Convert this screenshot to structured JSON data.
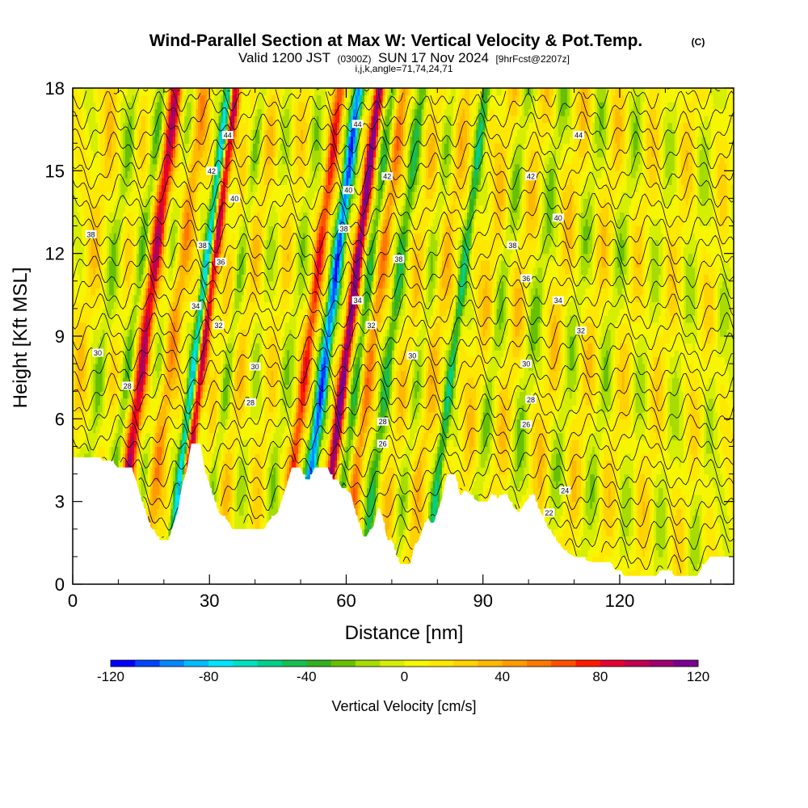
{
  "chart_data": {
    "type": "heatmap",
    "title": "Wind-Parallel Section at Max W: Vertical Velocity & Pot.Temp.",
    "title_mark": "(C)",
    "subtitle_prefix": "Valid 1200 JST",
    "subtitle_zulu": "(0300Z)",
    "subtitle_date": "SUN 17 Nov 2024",
    "subtitle_fcst": "[9hrFcst@2207z]",
    "subtitle2": "i,j,k,angle=71,74,24,71",
    "xlabel": "Distance [nm]",
    "ylabel": "Height [Kft MSL]",
    "xlim": [
      0,
      145
    ],
    "ylim": [
      0,
      18
    ],
    "x_ticks": [
      0,
      30,
      60,
      90,
      120
    ],
    "y_ticks": [
      0,
      3,
      6,
      9,
      12,
      15,
      18
    ],
    "x_tick_labels": [
      "0",
      "30",
      "60",
      "90",
      "120"
    ],
    "y_tick_labels": [
      "0",
      "3",
      "6",
      "9",
      "12",
      "15",
      "18"
    ],
    "colorbar": {
      "label": "Vertical Velocity [cm/s]",
      "min": -120,
      "max": 120,
      "step": 10,
      "tick_values": [
        -120,
        -80,
        -40,
        0,
        40,
        80,
        120
      ],
      "tick_labels": [
        "-120",
        "-80",
        "-40",
        "0",
        "40",
        "80",
        "120"
      ],
      "colors": [
        "#0000ff",
        "#0044ff",
        "#0088ff",
        "#00bbff",
        "#00e5ff",
        "#00e0c0",
        "#00d08a",
        "#16c050",
        "#33b020",
        "#66c000",
        "#a6dc00",
        "#d6ee00",
        "#f6f600",
        "#ffe800",
        "#ffd200",
        "#ffb800",
        "#ff9a00",
        "#ff7800",
        "#ff5000",
        "#ff1a00",
        "#e40030",
        "#c00050",
        "#a00070",
        "#7a0090"
      ]
    },
    "updraft_bands": [
      {
        "x": 2.5,
        "w": 20,
        "width": 1.6
      },
      {
        "x": 10,
        "w": 10,
        "width": 1.6
      },
      {
        "x": 16,
        "w": 90,
        "width": 1.4
      },
      {
        "x": 22,
        "w": 40,
        "width": 1.8
      },
      {
        "x": 29,
        "w": 95,
        "width": 1.1
      },
      {
        "x": 33,
        "w": 15,
        "width": 1.3
      },
      {
        "x": 38,
        "w": 20,
        "width": 1.8
      },
      {
        "x": 45,
        "w": 15,
        "width": 1.8
      },
      {
        "x": 52,
        "w": 70,
        "width": 1.2
      },
      {
        "x": 60.5,
        "w": 115,
        "width": 1.1
      },
      {
        "x": 66,
        "w": 45,
        "width": 1.4
      },
      {
        "x": 74,
        "w": 20,
        "width": 1.6
      },
      {
        "x": 80,
        "w": 25,
        "width": 1.8
      },
      {
        "x": 90,
        "w": 20,
        "width": 2.0
      },
      {
        "x": 97,
        "w": 20,
        "width": 1.8
      },
      {
        "x": 106,
        "w": 20,
        "width": 1.8
      },
      {
        "x": 114,
        "w": 18,
        "width": 2.0
      },
      {
        "x": 122,
        "w": 15,
        "width": 2.0
      },
      {
        "x": 130,
        "w": 15,
        "width": 2.0
      },
      {
        "x": 139,
        "w": 12,
        "width": 2.0
      }
    ],
    "downdraft_bands": [
      {
        "x": 7,
        "w": -25,
        "width": 1.4
      },
      {
        "x": 13,
        "w": -30,
        "width": 1.2
      },
      {
        "x": 20,
        "w": -20,
        "width": 1.4
      },
      {
        "x": 27.5,
        "w": -90,
        "width": 1.0
      },
      {
        "x": 35,
        "w": -25,
        "width": 1.3
      },
      {
        "x": 41,
        "w": -15,
        "width": 1.6
      },
      {
        "x": 48,
        "w": -20,
        "width": 1.6
      },
      {
        "x": 56,
        "w": -110,
        "width": 1.2
      },
      {
        "x": 63.5,
        "w": -40,
        "width": 1.2
      },
      {
        "x": 70,
        "w": -45,
        "width": 1.2
      },
      {
        "x": 77,
        "w": -20,
        "width": 1.6
      },
      {
        "x": 84,
        "w": -55,
        "width": 1.0
      },
      {
        "x": 93,
        "w": -25,
        "width": 1.6
      },
      {
        "x": 101,
        "w": -25,
        "width": 1.6
      },
      {
        "x": 110,
        "w": -20,
        "width": 1.8
      },
      {
        "x": 118,
        "w": -20,
        "width": 1.8
      },
      {
        "x": 126,
        "w": -15,
        "width": 1.8
      },
      {
        "x": 134,
        "w": -15,
        "width": 1.8
      },
      {
        "x": 142,
        "w": -15,
        "width": 1.6
      }
    ],
    "terrain": [
      [
        0,
        4.6
      ],
      [
        6,
        4.6
      ],
      [
        7,
        4.4
      ],
      [
        9,
        4.4
      ],
      [
        10,
        4.2
      ],
      [
        13,
        4.2
      ],
      [
        14,
        3.7
      ],
      [
        15,
        3.1
      ],
      [
        16,
        2.6
      ],
      [
        17,
        2.1
      ],
      [
        18,
        1.9
      ],
      [
        19,
        1.6
      ],
      [
        21,
        1.6
      ],
      [
        22,
        2.1
      ],
      [
        23,
        2.6
      ],
      [
        24,
        3.6
      ],
      [
        25,
        4.1
      ],
      [
        26,
        5.1
      ],
      [
        28,
        5.1
      ],
      [
        29,
        4.1
      ],
      [
        30,
        3.6
      ],
      [
        31,
        3.1
      ],
      [
        32,
        2.6
      ],
      [
        34,
        2.3
      ],
      [
        35,
        2.0
      ],
      [
        42,
        2.0
      ],
      [
        43,
        2.3
      ],
      [
        45,
        2.6
      ],
      [
        46,
        3.1
      ],
      [
        47,
        3.6
      ],
      [
        48,
        4.2
      ],
      [
        50,
        4.2
      ],
      [
        51,
        3.8
      ],
      [
        52,
        3.8
      ],
      [
        53,
        4.2
      ],
      [
        56,
        4.2
      ],
      [
        57,
        3.8
      ],
      [
        58,
        3.8
      ],
      [
        59,
        3.5
      ],
      [
        61,
        3.3
      ],
      [
        62,
        2.6
      ],
      [
        63,
        2.1
      ],
      [
        64,
        1.6
      ],
      [
        65,
        1.9
      ],
      [
        66,
        2.1
      ],
      [
        67,
        2.8
      ],
      [
        68,
        2.4
      ],
      [
        69,
        1.6
      ],
      [
        70,
        1.6
      ],
      [
        71,
        1.0
      ],
      [
        72,
        0.7
      ],
      [
        74,
        0.7
      ],
      [
        75,
        1.4
      ],
      [
        76,
        1.6
      ],
      [
        77,
        2.1
      ],
      [
        78,
        2.4
      ],
      [
        79,
        2.1
      ],
      [
        80,
        2.6
      ],
      [
        81,
        3.1
      ],
      [
        82,
        3.9
      ],
      [
        84,
        3.9
      ],
      [
        85,
        3.2
      ],
      [
        86,
        3.4
      ],
      [
        87,
        3.3
      ],
      [
        88,
        3.1
      ],
      [
        89,
        3.0
      ],
      [
        91,
        3.0
      ],
      [
        92,
        3.3
      ],
      [
        93,
        3.1
      ],
      [
        94,
        3.2
      ],
      [
        95,
        3.3
      ],
      [
        96,
        3.0
      ],
      [
        97,
        2.7
      ],
      [
        98,
        2.6
      ],
      [
        99,
        2.9
      ],
      [
        100,
        3.1
      ],
      [
        101,
        3.3
      ],
      [
        102,
        2.8
      ],
      [
        103,
        2.5
      ],
      [
        104,
        2.1
      ],
      [
        105,
        1.9
      ],
      [
        106,
        1.6
      ],
      [
        107,
        1.4
      ],
      [
        108,
        1.2
      ],
      [
        110,
        1.0
      ],
      [
        112,
        0.9
      ],
      [
        114,
        0.8
      ],
      [
        118,
        0.8
      ],
      [
        119,
        0.5
      ],
      [
        120,
        0.5
      ],
      [
        121,
        0.3
      ],
      [
        128,
        0.3
      ],
      [
        129,
        0.5
      ],
      [
        131,
        0.5
      ],
      [
        132,
        0.3
      ],
      [
        137,
        0.3
      ],
      [
        138,
        0.6
      ],
      [
        139,
        0.8
      ],
      [
        140,
        1.0
      ],
      [
        145,
        1.0
      ]
    ],
    "isentrope_labels": [
      {
        "text": "44",
        "x": 34,
        "y": 16.3
      },
      {
        "text": "42",
        "x": 30.5,
        "y": 15.0
      },
      {
        "text": "40",
        "x": 35.5,
        "y": 14.0
      },
      {
        "text": "38",
        "x": 28.5,
        "y": 12.3
      },
      {
        "text": "36",
        "x": 32.5,
        "y": 11.7
      },
      {
        "text": "34",
        "x": 27,
        "y": 10.1
      },
      {
        "text": "32",
        "x": 32,
        "y": 9.4
      },
      {
        "text": "30",
        "x": 40,
        "y": 7.9
      },
      {
        "text": "28",
        "x": 39,
        "y": 6.6
      },
      {
        "text": "38",
        "x": 4,
        "y": 12.7
      },
      {
        "text": "30",
        "x": 5.5,
        "y": 8.4
      },
      {
        "text": "28",
        "x": 12,
        "y": 7.2
      },
      {
        "text": "44",
        "x": 62.5,
        "y": 16.7
      },
      {
        "text": "42",
        "x": 69,
        "y": 14.8
      },
      {
        "text": "40",
        "x": 60.5,
        "y": 14.3
      },
      {
        "text": "38",
        "x": 59.5,
        "y": 12.9
      },
      {
        "text": "38",
        "x": 71.5,
        "y": 11.8
      },
      {
        "text": "34",
        "x": 62.5,
        "y": 10.3
      },
      {
        "text": "32",
        "x": 65.5,
        "y": 9.4
      },
      {
        "text": "30",
        "x": 74.5,
        "y": 8.3
      },
      {
        "text": "28",
        "x": 68,
        "y": 5.9
      },
      {
        "text": "26",
        "x": 68,
        "y": 5.1
      },
      {
        "text": "44",
        "x": 111,
        "y": 16.3
      },
      {
        "text": "42",
        "x": 100.5,
        "y": 14.8
      },
      {
        "text": "40",
        "x": 106.5,
        "y": 13.3
      },
      {
        "text": "38",
        "x": 96.5,
        "y": 12.3
      },
      {
        "text": "36",
        "x": 99.5,
        "y": 11.1
      },
      {
        "text": "34",
        "x": 106.5,
        "y": 10.3
      },
      {
        "text": "32",
        "x": 111.5,
        "y": 9.2
      },
      {
        "text": "30",
        "x": 99.5,
        "y": 8.0
      },
      {
        "text": "28",
        "x": 100.5,
        "y": 6.7
      },
      {
        "text": "26",
        "x": 99.5,
        "y": 5.8
      },
      {
        "text": "24",
        "x": 108,
        "y": 3.4
      },
      {
        "text": "22",
        "x": 104.5,
        "y": 2.6
      }
    ]
  }
}
